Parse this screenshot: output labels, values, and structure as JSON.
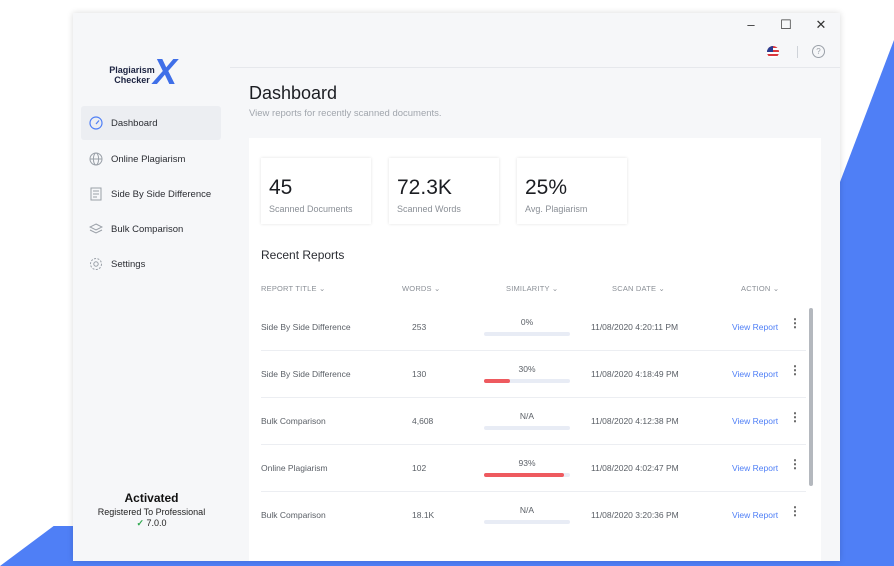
{
  "window": {
    "controls": {
      "minimize": "–",
      "maximize": "☐",
      "close": "✕"
    }
  },
  "app": {
    "logo_line1": "Plagiarism",
    "logo_line2": "Checker",
    "logo_mark": "X"
  },
  "sidebar": {
    "items": [
      {
        "label": "Dashboard",
        "icon": "gauge-icon"
      },
      {
        "label": "Online Plagiarism",
        "icon": "globe-icon"
      },
      {
        "label": "Side By Side Difference",
        "icon": "document-icon"
      },
      {
        "label": "Bulk Comparison",
        "icon": "layers-icon"
      },
      {
        "label": "Settings",
        "icon": "gear-icon"
      }
    ],
    "status_title": "Activated",
    "status_line": "Registered To Professional",
    "version": "7.0.0"
  },
  "header": {
    "help": "?"
  },
  "dashboard": {
    "title": "Dashboard",
    "subtitle": "View reports for recently scanned documents.",
    "stats": [
      {
        "value": "45",
        "label": "Scanned Documents"
      },
      {
        "value": "72.3K",
        "label": "Scanned Words"
      },
      {
        "value": "25%",
        "label": "Avg. Plagiarism"
      }
    ],
    "recent_title": "Recent Reports",
    "columns": [
      "REPORT TITLE",
      "WORDS",
      "SIMILARITY",
      "SCAN DATE",
      "ACTION"
    ],
    "rows": [
      {
        "title": "Side By Side Difference",
        "words": "253",
        "similarity": "0%",
        "fill": 0,
        "date": "11/08/2020 4:20:11 PM",
        "action": "View Report"
      },
      {
        "title": "Side By Side Difference",
        "words": "130",
        "similarity": "30%",
        "fill": 0.3,
        "date": "11/08/2020 4:18:49 PM",
        "action": "View Report"
      },
      {
        "title": "Bulk Comparison",
        "words": "4,608",
        "similarity": "N/A",
        "fill": 0,
        "date": "11/08/2020 4:12:38 PM",
        "action": "View Report"
      },
      {
        "title": "Online Plagiarism",
        "words": "102",
        "similarity": "93%",
        "fill": 0.93,
        "date": "11/08/2020 4:02:47 PM",
        "action": "View Report"
      },
      {
        "title": "Bulk Comparison",
        "words": "18.1K",
        "similarity": "N/A",
        "fill": 0,
        "date": "11/08/2020 3:20:36 PM",
        "action": "View Report"
      }
    ]
  },
  "colors": {
    "accent": "#4f7ff6",
    "danger": "#ee5a5f",
    "success": "#2fa84f"
  }
}
